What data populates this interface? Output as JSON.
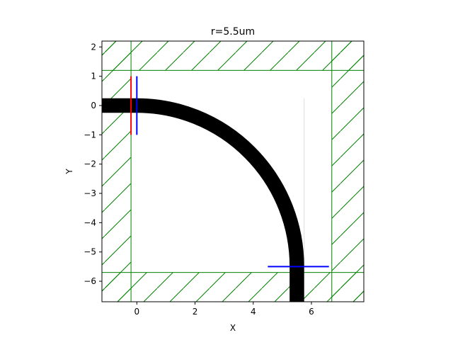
{
  "chart_data": {
    "type": "simulation-layout",
    "title": "r=5.5um",
    "xlabel": "X",
    "ylabel": "Y",
    "xlim": [
      -1.2,
      7.8
    ],
    "ylim": [
      -6.7,
      2.2
    ],
    "x_ticks": [
      0,
      2,
      4,
      6
    ],
    "y_ticks": [
      2,
      1,
      0,
      -1,
      -2,
      -3,
      -4,
      -5,
      -6
    ],
    "grid": false,
    "waveguide": {
      "color": "#000000",
      "width": 0.5,
      "straight_segment": {
        "x": [
          -1.2,
          0
        ],
        "y": 0
      },
      "bend": {
        "center": [
          0,
          -5.5
        ],
        "radius": 5.5,
        "start_deg": 90,
        "end_deg": 0
      },
      "output_segment": {
        "x": 5.5,
        "y": [
          -5.5,
          -6.7
        ]
      }
    },
    "sources": [
      {
        "color": "#ff0000",
        "x": -0.2,
        "y": [
          -1.0,
          1.0
        ]
      }
    ],
    "monitors": [
      {
        "color": "#0000ff",
        "x": 0.0,
        "y": [
          -1.0,
          1.0
        ]
      },
      {
        "color": "#0000ff",
        "y": -5.5,
        "x": [
          4.5,
          6.6
        ]
      }
    ],
    "pml": {
      "color": "#008000",
      "thickness": 1.0,
      "inner_bounds": {
        "x": [
          -0.2,
          6.7
        ],
        "y": [
          -5.7,
          1.2
        ]
      },
      "hatch": "/"
    },
    "guide_line": {
      "color": "#dddddd",
      "x": 5.75,
      "y": [
        -5.5,
        0.25
      ]
    }
  }
}
